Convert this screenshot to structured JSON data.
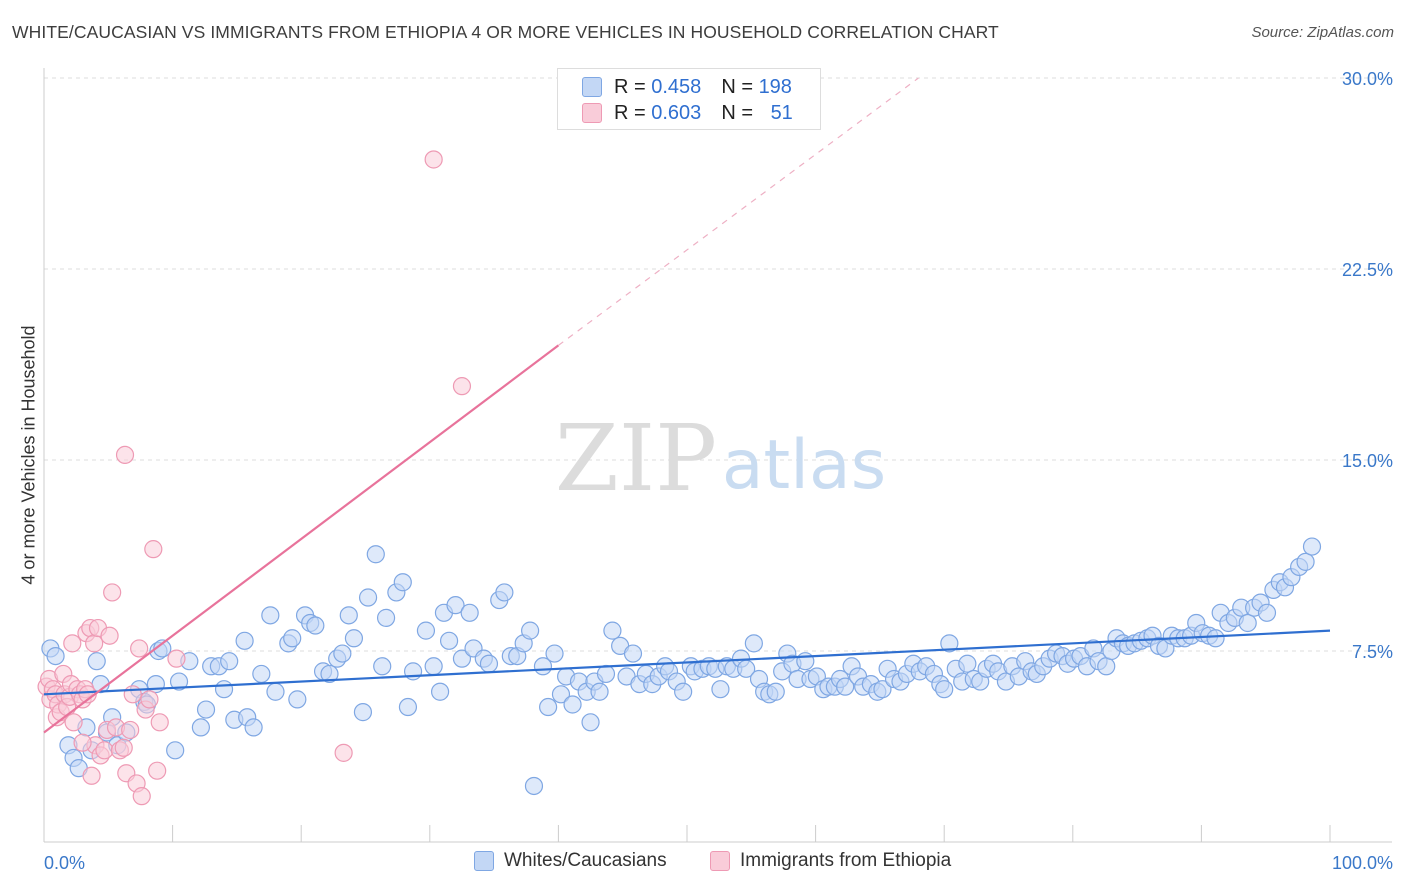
{
  "header": {
    "title": "WHITE/CAUCASIAN VS IMMIGRANTS FROM ETHIOPIA 4 OR MORE VEHICLES IN HOUSEHOLD CORRELATION CHART",
    "source": "Source: ZipAtlas.com"
  },
  "watermark": {
    "zip": "ZIP",
    "atlas": "atlas"
  },
  "stats": {
    "blue": {
      "r_label": "R = ",
      "r_value": "0.458",
      "n_label": "N = ",
      "n_value": "198"
    },
    "pink": {
      "r_label": "R = ",
      "r_value": "0.603",
      "n_label": "N = ",
      "n_value": "51"
    }
  },
  "colors": {
    "blue_fill": "#c3d7f5",
    "blue_stroke": "#7fa7e3",
    "blue_line": "#2f6fd0",
    "pink_fill": "#f9ccd9",
    "pink_stroke": "#ee9ab4",
    "pink_line": "#e8739b",
    "axis_label": "#3a78c9",
    "grid": "#dddddd"
  },
  "chart_data": {
    "type": "scatter",
    "title": "WHITE/CAUCASIAN VS IMMIGRANTS FROM ETHIOPIA 4 OR MORE VEHICLES IN HOUSEHOLD CORRELATION CHART",
    "ylabel": "4 or more Vehicles in Household",
    "xlim": [
      0,
      100
    ],
    "ylim": [
      0,
      30
    ],
    "x_tick_labels": [
      "0.0%",
      "100.0%"
    ],
    "y_ticks": [
      7.5,
      15.0,
      22.5,
      30.0
    ],
    "y_tick_labels": [
      "7.5%",
      "15.0%",
      "22.5%",
      "30.0%"
    ],
    "grid": "horizontal dashed",
    "legend": [
      "Whites/Caucasians",
      "Immigrants from Ethiopia"
    ],
    "series": [
      {
        "name": "Whites/Caucasians",
        "r": 0.458,
        "n": 198,
        "trend": {
          "x": [
            0,
            100
          ],
          "y": [
            5.8,
            8.3
          ]
        },
        "points": [
          [
            0.5,
            7.6
          ],
          [
            0.9,
            7.3
          ],
          [
            1.9,
            3.8
          ],
          [
            2.3,
            3.3
          ],
          [
            2.7,
            2.9
          ],
          [
            3.3,
            4.5
          ],
          [
            3.7,
            3.6
          ],
          [
            4.1,
            7.1
          ],
          [
            4.4,
            6.2
          ],
          [
            4.9,
            4.3
          ],
          [
            5.3,
            4.9
          ],
          [
            5.7,
            3.8
          ],
          [
            6.4,
            4.3
          ],
          [
            7.4,
            6.0
          ],
          [
            7.8,
            5.5
          ],
          [
            8.0,
            5.4
          ],
          [
            8.7,
            6.2
          ],
          [
            8.9,
            7.5
          ],
          [
            9.2,
            7.6
          ],
          [
            10.2,
            3.6
          ],
          [
            10.5,
            6.3
          ],
          [
            11.3,
            7.1
          ],
          [
            12.2,
            4.5
          ],
          [
            12.6,
            5.2
          ],
          [
            13.0,
            6.9
          ],
          [
            13.6,
            6.9
          ],
          [
            14.0,
            6.0
          ],
          [
            14.4,
            7.1
          ],
          [
            14.8,
            4.8
          ],
          [
            15.6,
            7.9
          ],
          [
            15.8,
            4.9
          ],
          [
            16.3,
            4.5
          ],
          [
            16.9,
            6.6
          ],
          [
            17.6,
            8.9
          ],
          [
            18.0,
            5.9
          ],
          [
            19.0,
            7.8
          ],
          [
            19.3,
            8.0
          ],
          [
            19.7,
            5.6
          ],
          [
            20.3,
            8.9
          ],
          [
            20.7,
            8.6
          ],
          [
            21.1,
            8.5
          ],
          [
            21.7,
            6.7
          ],
          [
            22.2,
            6.6
          ],
          [
            22.8,
            7.2
          ],
          [
            23.2,
            7.4
          ],
          [
            23.7,
            8.9
          ],
          [
            24.1,
            8.0
          ],
          [
            24.8,
            5.1
          ],
          [
            25.2,
            9.6
          ],
          [
            25.8,
            11.3
          ],
          [
            26.3,
            6.9
          ],
          [
            26.6,
            8.8
          ],
          [
            27.4,
            9.8
          ],
          [
            27.9,
            10.2
          ],
          [
            28.3,
            5.3
          ],
          [
            28.7,
            6.7
          ],
          [
            29.7,
            8.3
          ],
          [
            30.3,
            6.9
          ],
          [
            30.8,
            5.9
          ],
          [
            31.1,
            9.0
          ],
          [
            31.5,
            7.9
          ],
          [
            32.0,
            9.3
          ],
          [
            32.5,
            7.2
          ],
          [
            33.1,
            9.0
          ],
          [
            33.4,
            7.6
          ],
          [
            34.2,
            7.2
          ],
          [
            34.6,
            7.0
          ],
          [
            35.4,
            9.5
          ],
          [
            35.8,
            9.8
          ],
          [
            36.3,
            7.3
          ],
          [
            36.8,
            7.3
          ],
          [
            37.3,
            7.8
          ],
          [
            37.8,
            8.3
          ],
          [
            38.1,
            2.2
          ],
          [
            38.8,
            6.9
          ],
          [
            39.2,
            5.3
          ],
          [
            39.7,
            7.4
          ],
          [
            40.2,
            5.8
          ],
          [
            40.6,
            6.5
          ],
          [
            41.1,
            5.4
          ],
          [
            41.6,
            6.3
          ],
          [
            42.2,
            5.9
          ],
          [
            42.5,
            4.7
          ],
          [
            42.8,
            6.3
          ],
          [
            43.2,
            5.9
          ],
          [
            43.7,
            6.6
          ],
          [
            44.2,
            8.3
          ],
          [
            44.8,
            7.7
          ],
          [
            45.3,
            6.5
          ],
          [
            45.8,
            7.4
          ],
          [
            46.3,
            6.2
          ],
          [
            46.8,
            6.6
          ],
          [
            47.3,
            6.2
          ],
          [
            47.8,
            6.5
          ],
          [
            48.3,
            6.9
          ],
          [
            48.6,
            6.7
          ],
          [
            49.2,
            6.3
          ],
          [
            49.7,
            5.9
          ],
          [
            50.3,
            6.9
          ],
          [
            50.6,
            6.7
          ],
          [
            51.2,
            6.8
          ],
          [
            51.7,
            6.9
          ],
          [
            52.2,
            6.8
          ],
          [
            52.6,
            6.0
          ],
          [
            53.1,
            6.9
          ],
          [
            53.6,
            6.8
          ],
          [
            54.2,
            7.2
          ],
          [
            54.6,
            6.8
          ],
          [
            55.2,
            7.8
          ],
          [
            55.6,
            6.4
          ],
          [
            56.0,
            5.9
          ],
          [
            56.4,
            5.8
          ],
          [
            56.9,
            5.9
          ],
          [
            57.4,
            6.7
          ],
          [
            57.8,
            7.4
          ],
          [
            58.2,
            7.0
          ],
          [
            58.6,
            6.4
          ],
          [
            59.2,
            7.1
          ],
          [
            59.6,
            6.4
          ],
          [
            60.1,
            6.5
          ],
          [
            60.6,
            6.0
          ],
          [
            61.0,
            6.1
          ],
          [
            61.5,
            6.1
          ],
          [
            61.9,
            6.4
          ],
          [
            62.3,
            6.1
          ],
          [
            62.8,
            6.9
          ],
          [
            63.3,
            6.5
          ],
          [
            63.7,
            6.1
          ],
          [
            64.3,
            6.2
          ],
          [
            64.8,
            5.9
          ],
          [
            65.2,
            6.0
          ],
          [
            65.6,
            6.8
          ],
          [
            66.1,
            6.4
          ],
          [
            66.6,
            6.3
          ],
          [
            67.1,
            6.6
          ],
          [
            67.6,
            7.0
          ],
          [
            68.1,
            6.7
          ],
          [
            68.6,
            6.9
          ],
          [
            69.2,
            6.6
          ],
          [
            69.7,
            6.2
          ],
          [
            70.0,
            6.0
          ],
          [
            70.4,
            7.8
          ],
          [
            70.9,
            6.8
          ],
          [
            71.4,
            6.3
          ],
          [
            71.8,
            7.0
          ],
          [
            72.3,
            6.4
          ],
          [
            72.8,
            6.3
          ],
          [
            73.3,
            6.8
          ],
          [
            73.8,
            7.0
          ],
          [
            74.2,
            6.7
          ],
          [
            74.8,
            6.3
          ],
          [
            75.3,
            6.9
          ],
          [
            75.8,
            6.5
          ],
          [
            76.3,
            7.1
          ],
          [
            76.8,
            6.7
          ],
          [
            77.2,
            6.6
          ],
          [
            77.7,
            6.9
          ],
          [
            78.2,
            7.2
          ],
          [
            78.7,
            7.4
          ],
          [
            79.2,
            7.3
          ],
          [
            79.6,
            7.0
          ],
          [
            80.1,
            7.2
          ],
          [
            80.6,
            7.3
          ],
          [
            81.1,
            6.9
          ],
          [
            81.6,
            7.6
          ],
          [
            82.0,
            7.1
          ],
          [
            82.6,
            6.9
          ],
          [
            83.0,
            7.5
          ],
          [
            83.4,
            8.0
          ],
          [
            83.9,
            7.8
          ],
          [
            84.3,
            7.7
          ],
          [
            84.8,
            7.8
          ],
          [
            85.3,
            7.9
          ],
          [
            85.8,
            8.0
          ],
          [
            86.2,
            8.1
          ],
          [
            86.7,
            7.7
          ],
          [
            87.2,
            7.6
          ],
          [
            87.7,
            8.1
          ],
          [
            88.2,
            8.0
          ],
          [
            88.7,
            8.0
          ],
          [
            89.2,
            8.1
          ],
          [
            89.6,
            8.6
          ],
          [
            90.1,
            8.2
          ],
          [
            90.6,
            8.1
          ],
          [
            91.1,
            8.0
          ],
          [
            91.5,
            9.0
          ],
          [
            92.1,
            8.6
          ],
          [
            92.6,
            8.8
          ],
          [
            93.1,
            9.2
          ],
          [
            93.6,
            8.6
          ],
          [
            94.1,
            9.2
          ],
          [
            94.6,
            9.4
          ],
          [
            95.1,
            9.0
          ],
          [
            95.6,
            9.9
          ],
          [
            96.1,
            10.2
          ],
          [
            96.5,
            10.0
          ],
          [
            97.0,
            10.4
          ],
          [
            97.6,
            10.8
          ],
          [
            98.1,
            11.0
          ],
          [
            98.6,
            11.6
          ]
        ]
      },
      {
        "name": "Immigrants from Ethiopia",
        "r": 0.603,
        "n": 51,
        "trend": {
          "x": [
            0,
            40
          ],
          "y": [
            4.3,
            19.5
          ]
        },
        "trend_extension": {
          "x": [
            40,
            68
          ],
          "y": [
            19.5,
            30.0
          ]
        },
        "points": [
          [
            0.2,
            6.1
          ],
          [
            0.4,
            6.4
          ],
          [
            0.5,
            5.6
          ],
          [
            0.7,
            6.0
          ],
          [
            0.9,
            5.8
          ],
          [
            1.0,
            4.9
          ],
          [
            1.1,
            5.4
          ],
          [
            1.3,
            5.1
          ],
          [
            1.5,
            6.6
          ],
          [
            1.6,
            5.8
          ],
          [
            1.8,
            5.3
          ],
          [
            2.0,
            5.7
          ],
          [
            2.1,
            6.2
          ],
          [
            2.3,
            4.7
          ],
          [
            2.2,
            7.8
          ],
          [
            2.6,
            6.0
          ],
          [
            2.8,
            5.8
          ],
          [
            3.0,
            5.6
          ],
          [
            3.2,
            6.0
          ],
          [
            3.3,
            8.2
          ],
          [
            3.4,
            5.8
          ],
          [
            3.6,
            8.4
          ],
          [
            3.7,
            2.6
          ],
          [
            3.9,
            7.8
          ],
          [
            4.0,
            3.8
          ],
          [
            4.2,
            8.4
          ],
          [
            4.4,
            3.4
          ],
          [
            4.7,
            3.6
          ],
          [
            4.9,
            4.4
          ],
          [
            5.1,
            8.1
          ],
          [
            5.3,
            9.8
          ],
          [
            5.6,
            4.5
          ],
          [
            5.9,
            3.6
          ],
          [
            6.3,
            15.2
          ],
          [
            6.4,
            2.7
          ],
          [
            6.7,
            4.4
          ],
          [
            6.9,
            5.8
          ],
          [
            7.2,
            2.3
          ],
          [
            7.4,
            7.6
          ],
          [
            7.6,
            1.8
          ],
          [
            7.9,
            5.2
          ],
          [
            8.2,
            5.6
          ],
          [
            8.5,
            11.5
          ],
          [
            8.8,
            2.8
          ],
          [
            9.0,
            4.7
          ],
          [
            10.3,
            7.2
          ],
          [
            23.3,
            3.5
          ],
          [
            30.3,
            26.8
          ],
          [
            32.5,
            17.9
          ],
          [
            3.0,
            3.9
          ],
          [
            6.2,
            3.7
          ]
        ]
      }
    ]
  },
  "legend": {
    "blue_label": "Whites/Caucasians",
    "pink_label": "Immigrants from Ethiopia"
  }
}
